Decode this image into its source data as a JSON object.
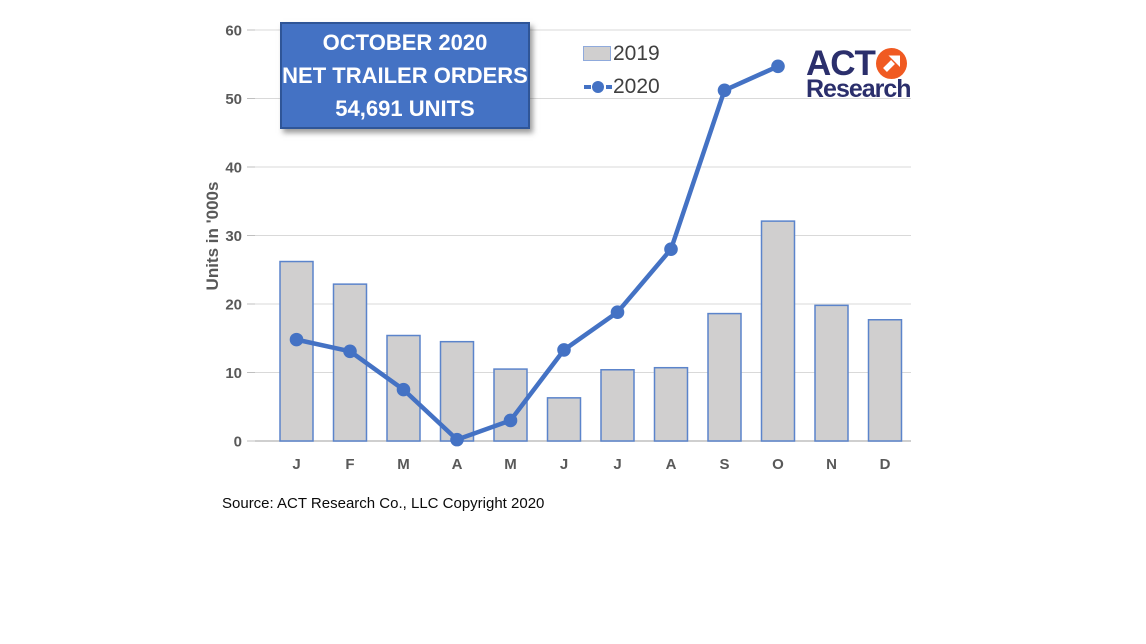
{
  "title_box": {
    "line1": "OCTOBER 2020",
    "line2": "NET TRAILER ORDERS",
    "line3": "54,691 UNITS"
  },
  "logo": {
    "text_top": "ACT",
    "text_bottom": "Research",
    "arrow_icon": "arrow-up-right-in-circle"
  },
  "source": "Source: ACT Research Co., LLC  Copyright 2020",
  "colors": {
    "title_bg": "#4472C4",
    "title_border": "#2F5597",
    "bar_fill": "#D0CFCF",
    "bar_border": "#5B84CB",
    "line": "#4472C4",
    "grid": "#D9D9D9",
    "axis_line": "#BFBFBF",
    "axis_text": "#595959",
    "legend_text": "#404040",
    "logo_navy": "#2B2F6C",
    "logo_orange": "#F05A22"
  },
  "chart_data": {
    "type": "combo",
    "categories": [
      "J",
      "F",
      "M",
      "A",
      "M",
      "J",
      "J",
      "A",
      "S",
      "O",
      "N",
      "D"
    ],
    "series": [
      {
        "name": "2019",
        "type": "bar",
        "values": [
          26.2,
          22.9,
          15.4,
          14.5,
          10.5,
          6.3,
          10.4,
          10.7,
          18.6,
          32.1,
          19.8,
          17.7
        ]
      },
      {
        "name": "2020",
        "type": "line",
        "values": [
          14.8,
          13.1,
          7.5,
          0.2,
          3.0,
          13.3,
          18.8,
          28.0,
          51.2,
          54.7
        ]
      }
    ],
    "title": "OCTOBER 2020 NET TRAILER ORDERS 54,691 UNITS",
    "xlabel": "",
    "ylabel": "Units in '000s",
    "yticks": [
      0,
      10,
      20,
      30,
      40,
      50,
      60
    ],
    "ylim": [
      0,
      60
    ],
    "grid": true,
    "legend_position": "top-center"
  }
}
